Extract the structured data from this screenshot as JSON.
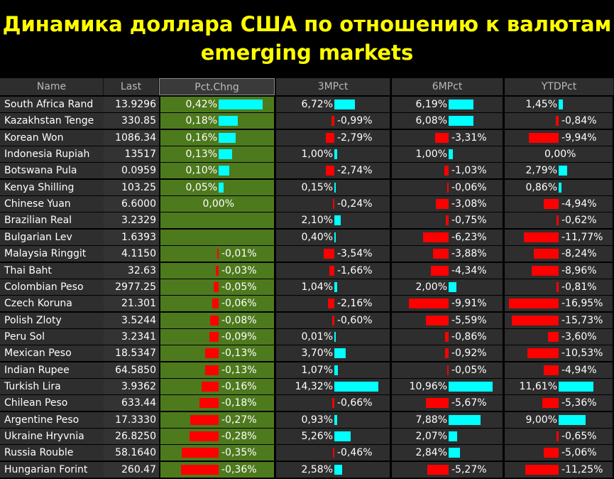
{
  "title": {
    "line1": "Динамика доллара США по отношению к валютам",
    "line2": "emerging markets"
  },
  "columns": [
    "Name",
    "Last",
    "Pct.Chng",
    "3MPct",
    "6MPct",
    "YTDPct"
  ],
  "rows": [
    {
      "name": "South Africa Rand",
      "last": "13.9296",
      "pct": 0.42,
      "pct_t": "0,42%",
      "m3": 6.72,
      "m3_t": "6,72%",
      "m6": 6.19,
      "m6_t": "6,19%",
      "ytd": 1.45,
      "ytd_t": "1,45%"
    },
    {
      "name": "Kazakhstan Tenge",
      "last": "330.85",
      "pct": 0.18,
      "pct_t": "0,18%",
      "m3": -0.99,
      "m3_t": "-0,99%",
      "m6": 6.08,
      "m6_t": "6,08%",
      "ytd": -0.84,
      "ytd_t": "-0,84%"
    },
    {
      "name": "Korean Won",
      "last": "1086.34",
      "pct": 0.16,
      "pct_t": "0,16%",
      "m3": -2.79,
      "m3_t": "-2,79%",
      "m6": -3.31,
      "m6_t": "-3,31%",
      "ytd": -9.94,
      "ytd_t": "-9,94%"
    },
    {
      "name": "Indonesia Rupiah",
      "last": "13517",
      "pct": 0.13,
      "pct_t": "0,13%",
      "m3": 1.0,
      "m3_t": "1,00%",
      "m6": 1.0,
      "m6_t": "1,00%",
      "ytd": 0.0,
      "ytd_t": "0,00%"
    },
    {
      "name": "Botswana Pula",
      "last": "0.0959",
      "pct": 0.1,
      "pct_t": "0,10%",
      "m3": -2.74,
      "m3_t": "-2,74%",
      "m6": -1.03,
      "m6_t": "-1,03%",
      "ytd": 2.79,
      "ytd_t": "2,79%"
    },
    {
      "name": "Kenya Shilling",
      "last": "103.25",
      "pct": 0.05,
      "pct_t": "0,05%",
      "m3": 0.15,
      "m3_t": "0,15%",
      "m6": -0.06,
      "m6_t": "-0,06%",
      "ytd": 0.86,
      "ytd_t": "0,86%"
    },
    {
      "name": "Chinese Yuan",
      "last": "6.6000",
      "pct": 0.0,
      "pct_t": "0,00%",
      "m3": -0.24,
      "m3_t": "-0,24%",
      "m6": -3.08,
      "m6_t": "-3,08%",
      "ytd": -4.94,
      "ytd_t": "-4,94%"
    },
    {
      "name": "Brazilian Real",
      "last": "3.2329",
      "pct": null,
      "pct_t": "",
      "m3": 2.1,
      "m3_t": "2,10%",
      "m6": -0.75,
      "m6_t": "-0,75%",
      "ytd": -0.62,
      "ytd_t": "-0,62%"
    },
    {
      "name": "Bulgarian Lev",
      "last": "1.6393",
      "pct": null,
      "pct_t": "",
      "m3": 0.4,
      "m3_t": "0,40%",
      "m6": -6.23,
      "m6_t": "-6,23%",
      "ytd": -11.77,
      "ytd_t": "-11,77%"
    },
    {
      "name": "Malaysia Ringgit",
      "last": "4.1150",
      "pct": -0.01,
      "pct_t": "-0,01%",
      "m3": -3.54,
      "m3_t": "-3,54%",
      "m6": -3.88,
      "m6_t": "-3,88%",
      "ytd": -8.24,
      "ytd_t": "-8,24%"
    },
    {
      "name": "Thai Baht",
      "last": "32.63",
      "pct": -0.03,
      "pct_t": "-0,03%",
      "m3": -1.66,
      "m3_t": "-1,66%",
      "m6": -4.34,
      "m6_t": "-4,34%",
      "ytd": -8.96,
      "ytd_t": "-8,96%"
    },
    {
      "name": "Colombian Peso",
      "last": "2977.25",
      "pct": -0.05,
      "pct_t": "-0,05%",
      "m3": 1.04,
      "m3_t": "1,04%",
      "m6": 2.0,
      "m6_t": "2,00%",
      "ytd": -0.81,
      "ytd_t": "-0,81%"
    },
    {
      "name": "Czech Koruna",
      "last": "21.301",
      "pct": -0.06,
      "pct_t": "-0,06%",
      "m3": -2.16,
      "m3_t": "-2,16%",
      "m6": -9.91,
      "m6_t": "-9,91%",
      "ytd": -16.95,
      "ytd_t": "-16,95%"
    },
    {
      "name": "Polish Zloty",
      "last": "3.5244",
      "pct": -0.08,
      "pct_t": "-0,08%",
      "m3": -0.6,
      "m3_t": "-0,60%",
      "m6": -5.59,
      "m6_t": "-5,59%",
      "ytd": -15.73,
      "ytd_t": "-15,73%"
    },
    {
      "name": "Peru Sol",
      "last": "3.2341",
      "pct": -0.09,
      "pct_t": "-0,09%",
      "m3": 0.01,
      "m3_t": "0,01%",
      "m6": -0.86,
      "m6_t": "-0,86%",
      "ytd": -3.6,
      "ytd_t": "-3,60%"
    },
    {
      "name": "Mexican Peso",
      "last": "18.5347",
      "pct": -0.13,
      "pct_t": "-0,13%",
      "m3": 3.7,
      "m3_t": "3,70%",
      "m6": -0.92,
      "m6_t": "-0,92%",
      "ytd": -10.53,
      "ytd_t": "-10,53%"
    },
    {
      "name": "Indian Rupee",
      "last": "64.5850",
      "pct": -0.13,
      "pct_t": "-0,13%",
      "m3": 1.07,
      "m3_t": "1,07%",
      "m6": -0.05,
      "m6_t": "-0,05%",
      "ytd": -4.94,
      "ytd_t": "-4,94%"
    },
    {
      "name": "Turkish Lira",
      "last": "3.9362",
      "pct": -0.16,
      "pct_t": "-0,16%",
      "m3": 14.32,
      "m3_t": "14,32%",
      "m6": 10.96,
      "m6_t": "10,96%",
      "ytd": 11.61,
      "ytd_t": "11,61%"
    },
    {
      "name": "Chilean Peso",
      "last": "633.44",
      "pct": -0.18,
      "pct_t": "-0,18%",
      "m3": -0.66,
      "m3_t": "-0,66%",
      "m6": -5.67,
      "m6_t": "-5,67%",
      "ytd": -5.36,
      "ytd_t": "-5,36%"
    },
    {
      "name": "Argentine Peso",
      "last": "17.3330",
      "pct": -0.27,
      "pct_t": "-0,27%",
      "m3": 0.93,
      "m3_t": "0,93%",
      "m6": 7.88,
      "m6_t": "7,88%",
      "ytd": 9.0,
      "ytd_t": "9,00%"
    },
    {
      "name": "Ukraine Hryvnia",
      "last": "26.8250",
      "pct": -0.28,
      "pct_t": "-0,28%",
      "m3": 5.26,
      "m3_t": "5,26%",
      "m6": 2.07,
      "m6_t": "2,07%",
      "ytd": -0.65,
      "ytd_t": "-0,65%"
    },
    {
      "name": "Russia Rouble",
      "last": "58.1640",
      "pct": -0.35,
      "pct_t": "-0,35%",
      "m3": -0.46,
      "m3_t": "-0,46%",
      "m6": 2.84,
      "m6_t": "2,84%",
      "ytd": -5.06,
      "ytd_t": "-5,06%"
    },
    {
      "name": "Hungarian Forint",
      "last": "260.47",
      "pct": -0.36,
      "pct_t": "-0,36%",
      "m3": 2.58,
      "m3_t": "2,58%",
      "m6": -5.27,
      "m6_t": "-5,27%",
      "ytd": -11.25,
      "ytd_t": "-11,25%"
    }
  ],
  "colors": {
    "positive": "#00ffff",
    "negative": "#ff0000",
    "pct_column_bg": "#4e7a1e",
    "title": "#ffff00",
    "header_bg": "#2e2e2e"
  }
}
